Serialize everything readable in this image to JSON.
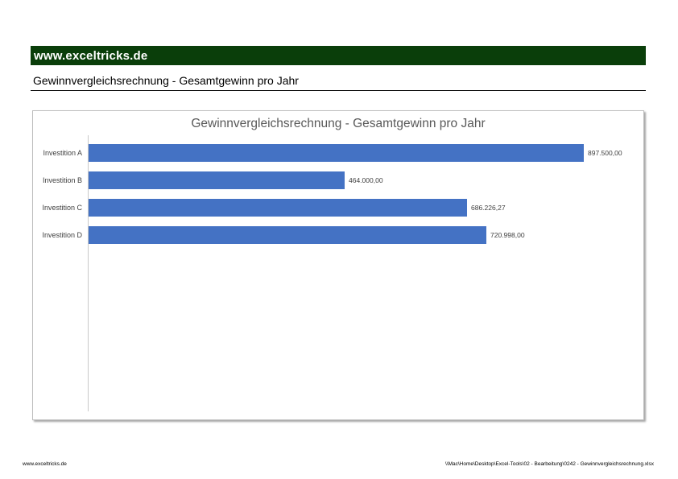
{
  "header_bar": {
    "text": "www.exceltricks.de",
    "bg_color": "#0A3E0A",
    "text_color": "#FFFFFF"
  },
  "document_title": "Gewinnvergleichsrechnung - Gesamtgewinn pro Jahr",
  "chart_data": {
    "type": "bar",
    "orientation": "horizontal",
    "title": "Gewinnvergleichsrechnung - Gesamtgewinn pro Jahr",
    "title_color": "#595959",
    "categories": [
      "Investition A",
      "Investition B",
      "Investition C",
      "Investition D"
    ],
    "values": [
      897500.0,
      464000.0,
      686226.27,
      720998.0
    ],
    "value_labels": [
      "897.500,00",
      "464.000,00",
      "686.226,27",
      "720.998,00"
    ],
    "bar_color": "#4472C4",
    "axis_line_color": "#C9C9C9",
    "xlim": [
      0,
      1000000
    ],
    "grid": false,
    "legend": false
  },
  "footer": {
    "left": "www.exceltricks.de",
    "right": "\\\\Mac\\Home\\Desktop\\Excel-Tools\\02 - Bearbeitung\\0242 - Gewinnvergleichsrechnung.xlsx"
  }
}
